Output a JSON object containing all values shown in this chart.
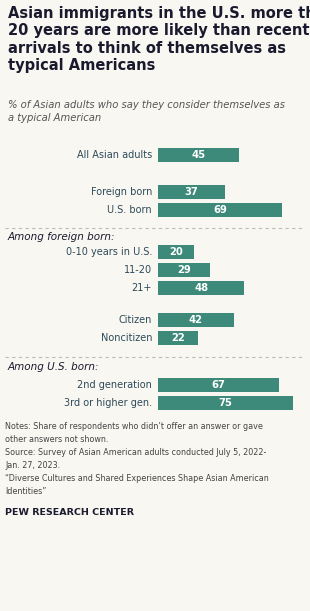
{
  "title": "Asian immigrants in the U.S. more than\n20 years are more likely than recent\narrivals to think of themselves as\ntypical Americans",
  "subtitle": "% of Asian adults who say they consider themselves as\na typical American",
  "bar_color": "#3d8a7a",
  "categories": [
    "All Asian adults",
    "Foreign born",
    "U.S. born",
    "0-10 years in U.S.",
    "11-20",
    "21+",
    "Citizen",
    "Noncitizen",
    "2nd generation",
    "3rd or higher gen."
  ],
  "values": [
    45,
    37,
    69,
    20,
    29,
    48,
    42,
    22,
    67,
    75
  ],
  "section_label_1": "Among foreign born:",
  "section_label_2": "Among U.S. born:",
  "notes_line1": "Notes: Share of respondents who didn’t offer an answer or gave",
  "notes_line2": "other answers not shown.",
  "notes_line3": "Source: Survey of Asian American adults conducted July 5, 2022-",
  "notes_line4": "Jan. 27, 2023.",
  "notes_line5": "“Diverse Cultures and Shared Experiences Shape Asian American",
  "notes_line6": "Identities”",
  "source_label": "PEW RESEARCH CENTER",
  "background_color": "#f9f7f2",
  "text_color": "#1a1a2e",
  "note_color": "#444444",
  "bar_label_color_dark": "#2d4a5a",
  "divider_color": "#bbbbbb",
  "max_val": 80
}
